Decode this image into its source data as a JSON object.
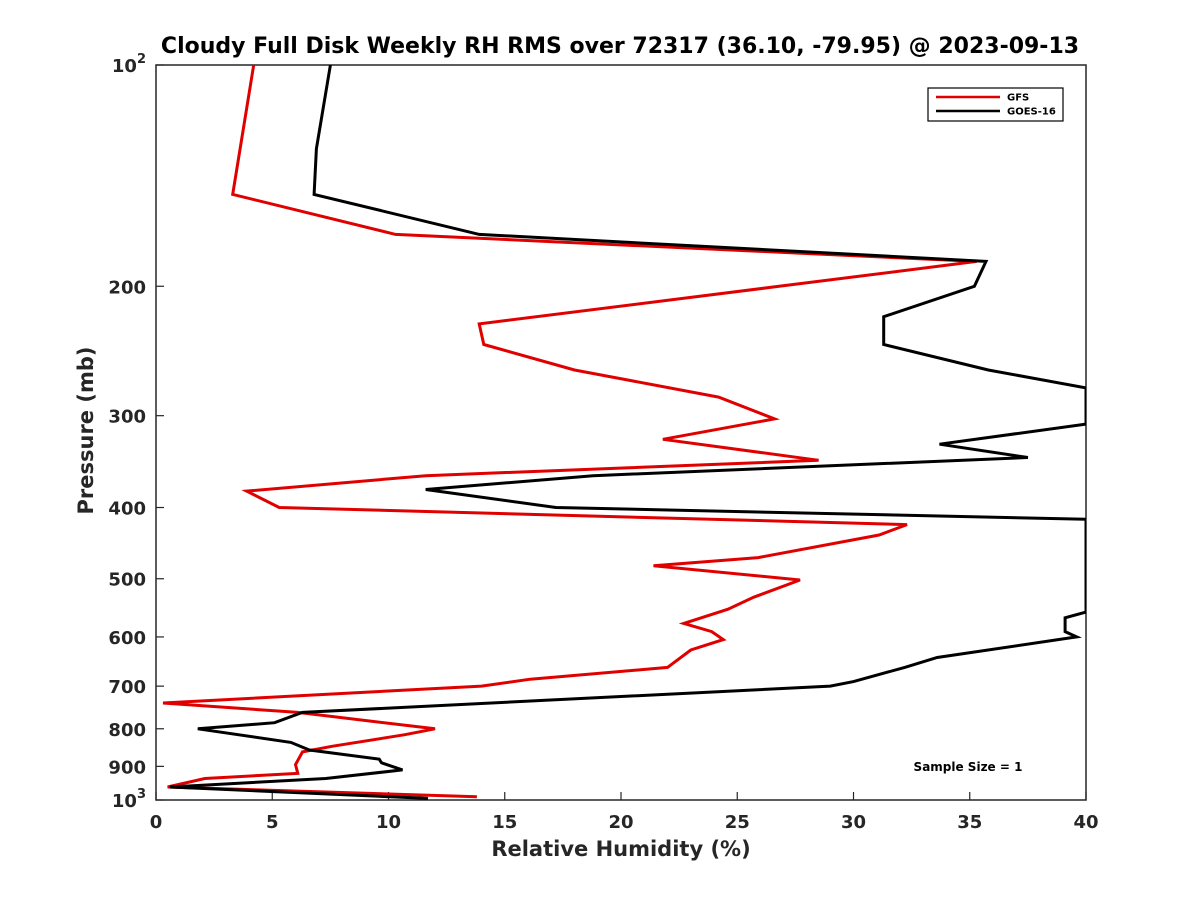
{
  "chart_data": {
    "type": "line",
    "title": "Cloudy Full Disk Weekly RH RMS over 72317 (36.10, -79.95) @ 2023-09-13",
    "xlabel": "Relative Humidity (%)",
    "ylabel": "Pressure (mb)",
    "xlim": [
      0,
      40
    ],
    "ylim": [
      100,
      1000
    ],
    "yscale": "log",
    "y_reversed": true,
    "grid": false,
    "legend_position": "top-right",
    "x_ticks": [
      0,
      5,
      10,
      15,
      20,
      25,
      30,
      35,
      40
    ],
    "y_ticks": [
      {
        "value": 100,
        "label": "10",
        "exp": "2"
      },
      {
        "value": 200,
        "label": "200"
      },
      {
        "value": 300,
        "label": "300"
      },
      {
        "value": 400,
        "label": "400"
      },
      {
        "value": 500,
        "label": "500"
      },
      {
        "value": 600,
        "label": "600"
      },
      {
        "value": 700,
        "label": "700"
      },
      {
        "value": 800,
        "label": "800"
      },
      {
        "value": 900,
        "label": "900"
      },
      {
        "value": 1000,
        "label": "10",
        "exp": "3"
      }
    ],
    "annotation": "Sample Size = 1",
    "series": [
      {
        "name": "GFS",
        "color": "#e00000",
        "points": [
          [
            4.2,
            100
          ],
          [
            3.3,
            150
          ],
          [
            10.3,
            170
          ],
          [
            35.3,
            185
          ],
          [
            26.8,
            200
          ],
          [
            13.9,
            225
          ],
          [
            14.1,
            240
          ],
          [
            18.0,
            260
          ],
          [
            24.2,
            283
          ],
          [
            26.6,
            303
          ],
          [
            21.8,
            323
          ],
          [
            28.5,
            345
          ],
          [
            11.6,
            362
          ],
          [
            3.9,
            380
          ],
          [
            5.3,
            400
          ],
          [
            32.3,
            422
          ],
          [
            31.1,
            436
          ],
          [
            25.9,
            468
          ],
          [
            21.4,
            480
          ],
          [
            27.7,
            502
          ],
          [
            25.7,
            530
          ],
          [
            24.6,
            550
          ],
          [
            22.7,
            575
          ],
          [
            23.9,
            590
          ],
          [
            24.4,
            605
          ],
          [
            23.0,
            625
          ],
          [
            22.0,
            660
          ],
          [
            16.1,
            685
          ],
          [
            14.0,
            700
          ],
          [
            0.3,
            738
          ],
          [
            6.1,
            760
          ],
          [
            12.0,
            800
          ],
          [
            10.7,
            815
          ],
          [
            7.6,
            845
          ],
          [
            6.3,
            860
          ],
          [
            6.0,
            895
          ],
          [
            6.1,
            920
          ],
          [
            2.1,
            935
          ],
          [
            0.5,
            960
          ],
          [
            13.8,
            990
          ]
        ]
      },
      {
        "name": "GOES-16",
        "color": "#000000",
        "points": [
          [
            7.5,
            100
          ],
          [
            6.9,
            130
          ],
          [
            6.8,
            150
          ],
          [
            13.9,
            170
          ],
          [
            35.7,
            185
          ],
          [
            35.2,
            200
          ],
          [
            31.3,
            220
          ],
          [
            31.3,
            240
          ],
          [
            35.8,
            260
          ],
          [
            40.0,
            275
          ],
          [
            40.0,
            308
          ],
          [
            33.7,
            328
          ],
          [
            37.5,
            342
          ],
          [
            18.8,
            362
          ],
          [
            11.6,
            378
          ],
          [
            17.2,
            400
          ],
          [
            40.0,
            415
          ],
          [
            40.0,
            555
          ],
          [
            39.1,
            565
          ],
          [
            39.1,
            590
          ],
          [
            39.6,
            600
          ],
          [
            33.6,
            640
          ],
          [
            32.2,
            660
          ],
          [
            30.0,
            690
          ],
          [
            29.0,
            700
          ],
          [
            6.3,
            760
          ],
          [
            5.1,
            785
          ],
          [
            1.8,
            800
          ],
          [
            5.8,
            835
          ],
          [
            6.6,
            855
          ],
          [
            9.6,
            880
          ],
          [
            9.7,
            890
          ],
          [
            10.6,
            910
          ],
          [
            7.3,
            935
          ],
          [
            0.6,
            960
          ],
          [
            11.7,
            995
          ]
        ]
      }
    ]
  }
}
